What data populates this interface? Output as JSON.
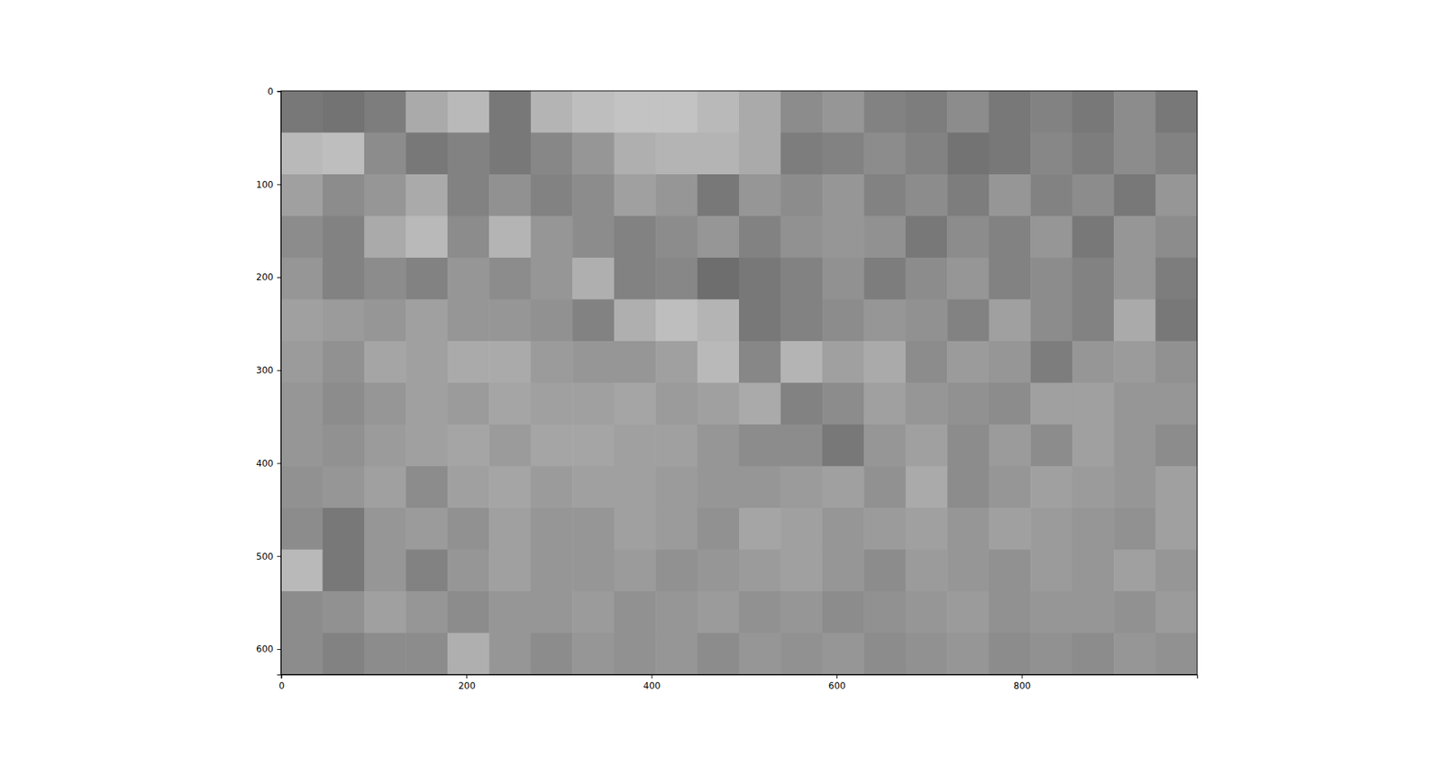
{
  "chart_data": {
    "type": "heatmap",
    "xlim": [
      -0.5,
      989.5
    ],
    "ylim": [
      627.5,
      -0.5
    ],
    "xticks": [
      0,
      200,
      400,
      600,
      800
    ],
    "yticks": [
      0,
      100,
      200,
      300,
      400,
      500,
      600
    ],
    "color_range": [
      0,
      255
    ],
    "cells": [
      [
        120,
        115,
        125,
        170,
        185,
        120,
        180,
        190,
        195,
        195,
        185,
        170,
        140,
        150,
        130,
        125,
        140,
        120,
        130,
        120,
        140,
        120
      ],
      [
        185,
        190,
        140,
        120,
        130,
        120,
        135,
        150,
        175,
        180,
        180,
        170,
        125,
        130,
        140,
        130,
        115,
        120,
        135,
        125,
        140,
        130
      ],
      [
        160,
        140,
        150,
        170,
        130,
        145,
        130,
        140,
        160,
        150,
        120,
        150,
        140,
        150,
        130,
        140,
        125,
        150,
        130,
        140,
        120,
        150
      ],
      [
        140,
        130,
        170,
        185,
        140,
        180,
        150,
        140,
        130,
        140,
        150,
        130,
        145,
        150,
        145,
        120,
        140,
        130,
        150,
        120,
        150,
        140
      ],
      [
        150,
        130,
        140,
        130,
        150,
        140,
        150,
        175,
        130,
        135,
        110,
        120,
        130,
        145,
        125,
        140,
        150,
        130,
        140,
        130,
        150,
        125
      ],
      [
        160,
        155,
        150,
        160,
        150,
        150,
        145,
        130,
        175,
        190,
        180,
        120,
        130,
        140,
        150,
        145,
        130,
        160,
        140,
        130,
        170,
        120
      ],
      [
        155,
        145,
        165,
        160,
        170,
        170,
        155,
        150,
        150,
        160,
        185,
        135,
        180,
        160,
        170,
        140,
        155,
        150,
        125,
        150,
        155,
        145
      ],
      [
        150,
        140,
        150,
        160,
        155,
        165,
        160,
        160,
        165,
        155,
        160,
        170,
        130,
        140,
        160,
        150,
        145,
        140,
        160,
        160,
        150,
        150
      ],
      [
        150,
        145,
        155,
        160,
        165,
        155,
        165,
        165,
        160,
        160,
        150,
        140,
        140,
        120,
        150,
        160,
        140,
        155,
        140,
        160,
        150,
        140
      ],
      [
        145,
        150,
        160,
        140,
        160,
        165,
        155,
        160,
        160,
        155,
        150,
        150,
        155,
        160,
        145,
        170,
        140,
        150,
        160,
        155,
        150,
        160
      ],
      [
        140,
        120,
        150,
        155,
        145,
        160,
        150,
        150,
        160,
        155,
        145,
        165,
        160,
        150,
        155,
        160,
        150,
        160,
        155,
        150,
        145,
        160
      ],
      [
        185,
        120,
        150,
        130,
        150,
        160,
        150,
        150,
        155,
        145,
        150,
        155,
        160,
        150,
        140,
        155,
        150,
        145,
        155,
        150,
        160,
        150
      ],
      [
        140,
        145,
        160,
        150,
        140,
        150,
        150,
        155,
        145,
        150,
        155,
        145,
        150,
        140,
        145,
        150,
        155,
        145,
        150,
        150,
        145,
        155
      ],
      [
        140,
        130,
        140,
        140,
        175,
        150,
        140,
        150,
        145,
        150,
        140,
        150,
        145,
        150,
        140,
        145,
        150,
        140,
        145,
        140,
        150,
        145
      ]
    ]
  }
}
